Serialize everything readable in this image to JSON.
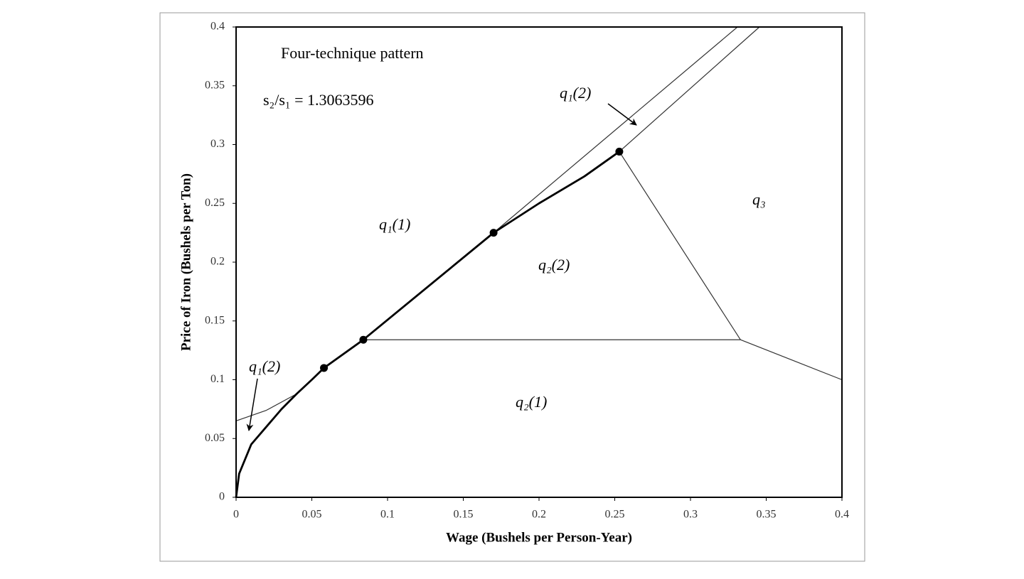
{
  "chart_data": {
    "type": "line",
    "xlabel": "Wage (Bushels per Person-Year)",
    "ylabel": "Price of Iron (Bushels per Ton)",
    "xlim": [
      0,
      0.4
    ],
    "ylim": [
      0,
      0.4
    ],
    "xticks": [
      0,
      0.05,
      0.1,
      0.15,
      0.2,
      0.25,
      0.3,
      0.35,
      0.4
    ],
    "yticks": [
      0,
      0.05,
      0.1,
      0.15,
      0.2,
      0.25,
      0.3,
      0.35,
      0.4
    ],
    "series": [
      {
        "color": "#333333",
        "line_width": 1.2,
        "marker": false,
        "x": [
          0,
          0.02,
          0.04,
          0.058,
          0.084,
          0.17,
          0.331
        ],
        "values": [
          0.065,
          0.074,
          0.088,
          0.11,
          0.134,
          0.225,
          0.4
        ]
      },
      {
        "color": "#333333",
        "line_width": 1.2,
        "marker": false,
        "x": [
          0.253,
          0.3455
        ],
        "values": [
          0.294,
          0.4
        ]
      },
      {
        "color": "#000000",
        "line_width": 2.8,
        "marker": false,
        "x": [
          0,
          0.002,
          0.01,
          0.02,
          0.03,
          0.04,
          0.05,
          0.058,
          0.084,
          0.17,
          0.2,
          0.23,
          0.253
        ],
        "values": [
          0,
          0.02,
          0.045,
          0.06,
          0.075,
          0.088,
          0.1,
          0.11,
          0.134,
          0.225,
          0.25,
          0.273,
          0.294
        ]
      },
      {
        "color": "#333333",
        "line_width": 1.2,
        "marker": false,
        "x": [
          0.084,
          0.333
        ],
        "values": [
          0.134,
          0.134
        ]
      },
      {
        "color": "#333333",
        "line_width": 1.2,
        "marker": false,
        "x": [
          0.253,
          0.333
        ],
        "values": [
          0.294,
          0.134
        ]
      },
      {
        "color": "#333333",
        "line_width": 1.2,
        "marker": false,
        "x": [
          0.333,
          0.4
        ],
        "values": [
          0.134,
          0.1
        ]
      },
      {
        "color": "#000000",
        "line_width": 0,
        "marker": true,
        "x": [
          0.058,
          0.084,
          0.17,
          0.253
        ],
        "values": [
          0.11,
          0.134,
          0.225,
          0.294
        ]
      }
    ],
    "annotations": [
      "Four-technique pattern",
      "s₂/s₁ = 1.3063596",
      "q₁(2)",
      "q₁(1)",
      "q₂(2)",
      "q₃",
      "q₂(1)",
      "q₁(2)"
    ]
  }
}
